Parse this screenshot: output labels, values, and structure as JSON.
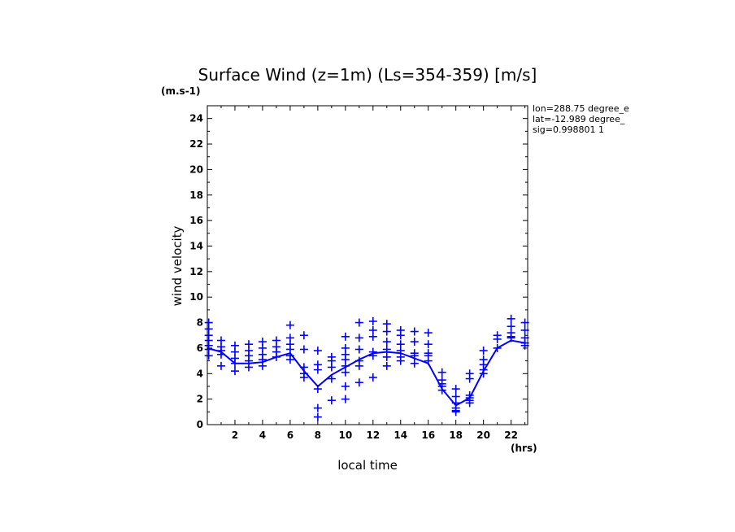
{
  "chart_data": {
    "type": "scatter",
    "title": "Surface Wind (z=1m) (Ls=354-359) [m/s]",
    "y_unit": "(m.s-1)",
    "x_unit": "(hrs)",
    "xlabel": "local time",
    "ylabel": "wind velocity",
    "xlim": [
      0,
      23.2
    ],
    "ylim": [
      0,
      25
    ],
    "x_ticks": [
      2,
      4,
      6,
      8,
      10,
      12,
      14,
      16,
      18,
      20,
      22
    ],
    "y_ticks": [
      0,
      2,
      4,
      6,
      8,
      10,
      12,
      14,
      16,
      18,
      20,
      22,
      24
    ],
    "info": [
      "lon=288.75 degree_e",
      "lat=-12.989 degree_",
      "sig=0.998801 1"
    ],
    "color": "#0000ff",
    "grid": false,
    "series": [
      {
        "type": "line",
        "x": [
          0,
          1,
          2,
          3,
          4,
          5,
          6,
          7,
          8,
          9,
          10,
          11,
          12,
          13,
          14,
          15,
          16,
          17,
          18,
          19,
          20,
          21,
          22,
          23
        ],
        "y": [
          6.0,
          5.7,
          4.8,
          4.8,
          4.9,
          5.3,
          5.6,
          4.2,
          3.0,
          3.9,
          4.5,
          5.1,
          5.6,
          5.7,
          5.6,
          5.2,
          4.8,
          2.8,
          1.5,
          2.1,
          4.2,
          6.0,
          6.6,
          6.4
        ]
      },
      {
        "type": "scatter",
        "marker": "+",
        "points": [
          [
            0.1,
            8.0
          ],
          [
            0.1,
            7.5
          ],
          [
            0.1,
            7.0
          ],
          [
            0.1,
            6.6
          ],
          [
            0.1,
            6.2
          ],
          [
            0.1,
            5.9
          ],
          [
            0.1,
            5.4
          ],
          [
            1.0,
            6.6
          ],
          [
            1.0,
            6.1
          ],
          [
            1.0,
            5.8
          ],
          [
            1.0,
            5.5
          ],
          [
            1.0,
            4.6
          ],
          [
            2.0,
            6.2
          ],
          [
            2.0,
            5.7
          ],
          [
            2.0,
            5.2
          ],
          [
            2.0,
            4.8
          ],
          [
            2.0,
            4.2
          ],
          [
            3.0,
            6.3
          ],
          [
            3.0,
            5.8
          ],
          [
            3.0,
            5.4
          ],
          [
            3.0,
            5.0
          ],
          [
            3.0,
            4.5
          ],
          [
            4.0,
            6.5
          ],
          [
            4.0,
            6.0
          ],
          [
            4.0,
            5.5
          ],
          [
            4.0,
            5.1
          ],
          [
            4.0,
            4.6
          ],
          [
            5.0,
            6.6
          ],
          [
            5.0,
            6.1
          ],
          [
            5.0,
            5.7
          ],
          [
            5.0,
            5.3
          ],
          [
            6.0,
            7.8
          ],
          [
            6.0,
            6.8
          ],
          [
            6.0,
            6.3
          ],
          [
            6.0,
            5.9
          ],
          [
            6.0,
            5.4
          ],
          [
            6.0,
            5.1
          ],
          [
            7.0,
            7.0
          ],
          [
            7.0,
            5.9
          ],
          [
            7.0,
            4.5
          ],
          [
            7.0,
            4.0
          ],
          [
            7.0,
            3.7
          ],
          [
            8.0,
            5.8
          ],
          [
            8.0,
            4.7
          ],
          [
            8.0,
            4.3
          ],
          [
            8.0,
            2.8
          ],
          [
            8.0,
            1.3
          ],
          [
            8.0,
            0.6
          ],
          [
            9.0,
            5.3
          ],
          [
            9.0,
            5.0
          ],
          [
            9.0,
            4.5
          ],
          [
            9.0,
            3.6
          ],
          [
            9.0,
            1.9
          ],
          [
            10.0,
            6.9
          ],
          [
            10.0,
            6.0
          ],
          [
            10.0,
            5.5
          ],
          [
            10.0,
            5.1
          ],
          [
            10.0,
            4.6
          ],
          [
            10.0,
            4.1
          ],
          [
            10.0,
            3.0
          ],
          [
            10.0,
            2.0
          ],
          [
            11.0,
            8.0
          ],
          [
            11.0,
            6.8
          ],
          [
            11.0,
            5.9
          ],
          [
            11.0,
            5.0
          ],
          [
            11.0,
            4.6
          ],
          [
            11.0,
            3.3
          ],
          [
            12.0,
            8.1
          ],
          [
            12.0,
            7.4
          ],
          [
            12.0,
            6.9
          ],
          [
            12.0,
            5.7
          ],
          [
            12.0,
            5.4
          ],
          [
            12.0,
            3.7
          ],
          [
            13.0,
            7.9
          ],
          [
            13.0,
            7.3
          ],
          [
            13.0,
            6.5
          ],
          [
            13.0,
            5.9
          ],
          [
            13.0,
            5.3
          ],
          [
            13.0,
            4.6
          ],
          [
            14.0,
            7.4
          ],
          [
            14.0,
            7.0
          ],
          [
            14.0,
            6.3
          ],
          [
            14.0,
            5.8
          ],
          [
            14.0,
            5.3
          ],
          [
            14.0,
            5.0
          ],
          [
            15.0,
            7.3
          ],
          [
            15.0,
            6.5
          ],
          [
            15.0,
            5.6
          ],
          [
            15.0,
            5.4
          ],
          [
            15.0,
            4.8
          ],
          [
            16.0,
            7.2
          ],
          [
            16.0,
            6.3
          ],
          [
            16.0,
            5.6
          ],
          [
            16.0,
            5.4
          ],
          [
            16.0,
            5.0
          ],
          [
            17.0,
            4.1
          ],
          [
            17.0,
            3.5
          ],
          [
            17.0,
            3.2
          ],
          [
            17.0,
            3.0
          ],
          [
            17.0,
            2.7
          ],
          [
            18.0,
            2.8
          ],
          [
            18.0,
            2.2
          ],
          [
            18.0,
            1.7
          ],
          [
            18.0,
            1.3
          ],
          [
            18.0,
            1.1
          ],
          [
            18.0,
            1.0
          ],
          [
            19.0,
            4.0
          ],
          [
            19.0,
            3.6
          ],
          [
            19.0,
            2.3
          ],
          [
            19.0,
            2.1
          ],
          [
            19.0,
            1.9
          ],
          [
            19.0,
            1.7
          ],
          [
            20.0,
            5.8
          ],
          [
            20.0,
            5.1
          ],
          [
            20.0,
            4.7
          ],
          [
            20.0,
            4.3
          ],
          [
            20.0,
            4.0
          ],
          [
            21.0,
            7.0
          ],
          [
            21.0,
            6.7
          ],
          [
            21.0,
            6.0
          ],
          [
            22.0,
            8.3
          ],
          [
            22.0,
            7.7
          ],
          [
            22.0,
            7.2
          ],
          [
            22.0,
            6.9
          ],
          [
            22.0,
            6.8
          ],
          [
            23.0,
            8.0
          ],
          [
            23.0,
            7.4
          ],
          [
            23.0,
            6.8
          ],
          [
            23.0,
            6.4
          ],
          [
            23.0,
            6.2
          ]
        ]
      }
    ]
  }
}
